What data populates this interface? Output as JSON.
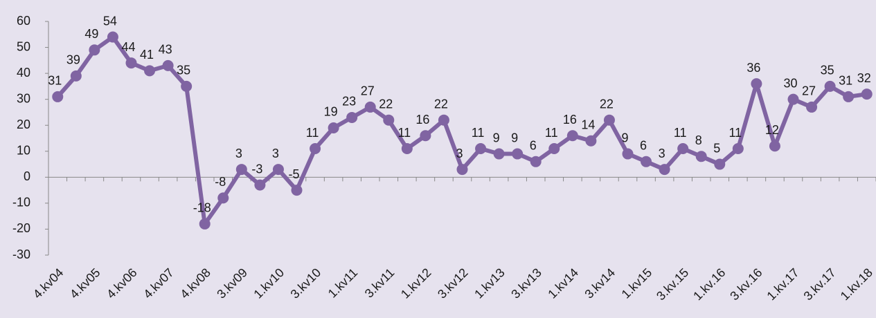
{
  "chart_data": {
    "type": "line",
    "categories": [
      "4.kv04",
      null,
      "4.kv05",
      null,
      "4.kv06",
      null,
      "4.kv07",
      null,
      "4.kv08",
      null,
      "3.kv09",
      null,
      "1.kv10",
      null,
      "3.kv10",
      null,
      "1.kv11",
      null,
      "3.kv11",
      null,
      "1.kv12",
      null,
      "3.kv12",
      null,
      "1.kv13",
      null,
      "3.kv13",
      null,
      "1.kv14",
      null,
      "3.kv14",
      null,
      "1.kv15",
      null,
      "3.kv.15",
      null,
      "1.kv.16",
      null,
      "3.kv.16",
      null,
      "1.kv.17",
      null,
      "3.kv.17",
      null,
      "1.kv.18"
    ],
    "values": [
      31,
      39,
      49,
      54,
      44,
      41,
      43,
      35,
      -18,
      -8,
      3,
      -3,
      3,
      -5,
      11,
      19,
      23,
      27,
      22,
      11,
      16,
      22,
      3,
      11,
      9,
      9,
      6,
      11,
      16,
      14,
      22,
      9,
      6,
      3,
      11,
      8,
      5,
      11,
      36,
      12,
      30,
      27,
      35,
      31,
      32
    ],
    "color": "#8064a2",
    "ylim": [
      -30,
      60
    ],
    "yticks": [
      -30,
      -20,
      -10,
      0,
      10,
      20,
      30,
      40,
      50,
      60
    ]
  }
}
